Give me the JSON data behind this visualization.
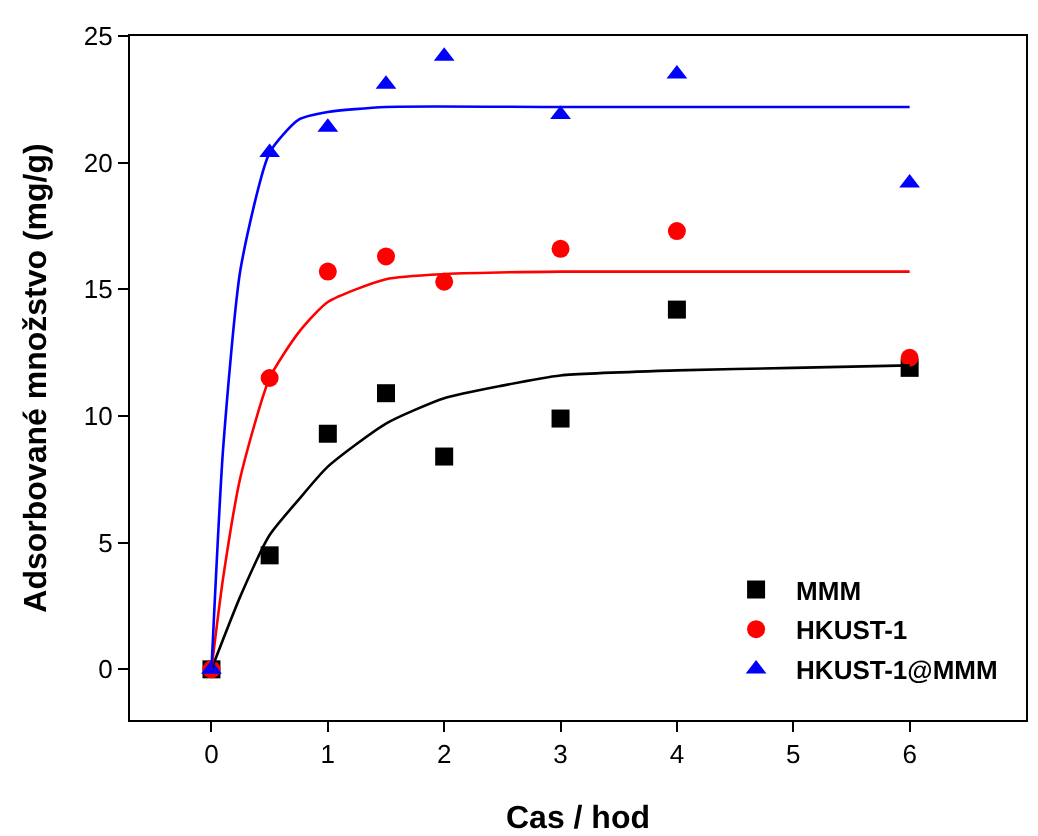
{
  "chart_data": {
    "type": "scatter",
    "xlabel": "Cas / hod",
    "ylabel": "Adsorbované množstvo (mg/g)",
    "xlim": [
      -0.7,
      7
    ],
    "xticks": [
      0,
      1,
      2,
      3,
      4,
      5,
      6
    ],
    "ylim": [
      -2,
      25
    ],
    "yticks": [
      0,
      5,
      10,
      15,
      20,
      25
    ],
    "grid": false,
    "legend": "bottom right",
    "series": [
      {
        "name": "MMM",
        "color": "#000000",
        "marker": "square",
        "x": [
          0,
          0.5,
          1,
          1.5,
          2,
          3,
          4,
          6
        ],
        "values": [
          0,
          4.5,
          9.3,
          10.9,
          8.4,
          9.9,
          14.2,
          11.9
        ]
      },
      {
        "name": "HKUST-1",
        "color": "#ff0000",
        "marker": "circle",
        "x": [
          0,
          0.5,
          1,
          1.5,
          2,
          3,
          4,
          6
        ],
        "values": [
          0,
          11.5,
          15.7,
          16.3,
          15.3,
          16.6,
          17.3,
          12.3
        ]
      },
      {
        "name": "HKUST-1@MMM",
        "color": "#0000ff",
        "marker": "triangle",
        "x": [
          0,
          0.5,
          1,
          1.5,
          2,
          3,
          4,
          6
        ],
        "values": [
          0,
          20.4,
          21.4,
          23.1,
          24.2,
          21.9,
          23.5,
          19.2
        ]
      },
      {
        "type": "line",
        "color": "#000000",
        "marker": "none",
        "x": [
          0,
          0.25,
          0.5,
          0.75,
          1,
          1.5,
          2,
          2.5,
          3,
          4,
          5,
          6
        ],
        "values": [
          0,
          2.9,
          5.3,
          6.7,
          8.0,
          9.7,
          10.7,
          11.2,
          11.6,
          11.8,
          11.9,
          12.0
        ]
      },
      {
        "type": "line",
        "color": "#ff0000",
        "marker": "none",
        "x": [
          0,
          0.1,
          0.25,
          0.5,
          0.75,
          1,
          1.5,
          2,
          3,
          6
        ],
        "values": [
          0,
          3.6,
          7.6,
          11.5,
          13.3,
          14.5,
          15.4,
          15.6,
          15.7,
          15.7
        ]
      },
      {
        "type": "line",
        "color": "#0000ff",
        "marker": "none",
        "x": [
          0,
          0.1,
          0.25,
          0.5,
          0.75,
          1,
          1.5,
          3,
          6
        ],
        "values": [
          0,
          8.7,
          15.8,
          20.4,
          21.7,
          22.0,
          22.2,
          22.2,
          22.2
        ]
      }
    ]
  }
}
